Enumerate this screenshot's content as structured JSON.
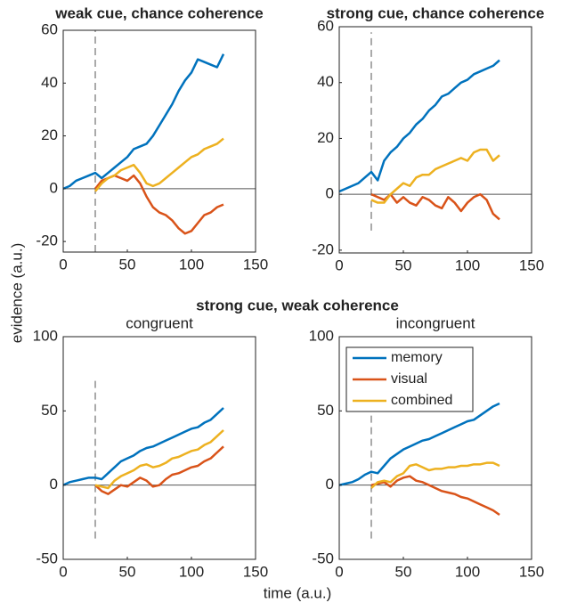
{
  "group_title": "strong cue, weak coherence",
  "ylabel": "evidence (a.u.)",
  "xlabel": "time (a.u.)",
  "chart_data": [
    {
      "type": "line",
      "title": "weak cue, chance coherence",
      "x": [
        0,
        5,
        10,
        15,
        20,
        25,
        30,
        35,
        40,
        45,
        50,
        55,
        60,
        65,
        70,
        75,
        80,
        85,
        90,
        95,
        100,
        105,
        110,
        115,
        120,
        125
      ],
      "series": [
        {
          "name": "memory",
          "color": "#0072bd",
          "values": [
            0,
            1,
            3,
            4,
            5,
            6,
            4,
            6,
            8,
            10,
            12,
            15,
            16,
            17,
            20,
            24,
            28,
            32,
            37,
            41,
            44,
            49,
            48,
            47,
            46,
            51
          ]
        },
        {
          "name": "visual",
          "color": "#d95319",
          "values": [
            null,
            null,
            null,
            null,
            null,
            0,
            3,
            4,
            5,
            4,
            3,
            5,
            2,
            -3,
            -7,
            -9,
            -10,
            -12,
            -15,
            -17,
            -16,
            -13,
            -10,
            -9,
            -7,
            -6
          ]
        },
        {
          "name": "combined",
          "color": "#edb120",
          "values": [
            null,
            null,
            null,
            null,
            null,
            -1,
            2,
            4,
            5,
            7,
            8,
            9,
            6,
            2,
            1,
            2,
            4,
            6,
            8,
            10,
            12,
            13,
            15,
            16,
            17,
            19
          ]
        }
      ],
      "xlim": [
        0,
        150
      ],
      "xticks": [
        0,
        50,
        100,
        150
      ],
      "ylim": [
        -24,
        60
      ],
      "yticks": [
        -20,
        0,
        20,
        40,
        60
      ],
      "hline": 0,
      "vline": {
        "x": 25,
        "y": [
          -24,
          60
        ]
      }
    },
    {
      "type": "line",
      "title": "strong cue, chance coherence",
      "x": [
        0,
        5,
        10,
        15,
        20,
        25,
        30,
        35,
        40,
        45,
        50,
        55,
        60,
        65,
        70,
        75,
        80,
        85,
        90,
        95,
        100,
        105,
        110,
        115,
        120,
        125
      ],
      "series": [
        {
          "name": "memory",
          "color": "#0072bd",
          "values": [
            1,
            2,
            3,
            4,
            6,
            8,
            5,
            12,
            15,
            17,
            20,
            22,
            25,
            27,
            30,
            32,
            35,
            36,
            38,
            40,
            41,
            43,
            44,
            45,
            46,
            48
          ]
        },
        {
          "name": "visual",
          "color": "#d95319",
          "values": [
            null,
            null,
            null,
            null,
            null,
            0,
            -1,
            -2,
            0,
            -3,
            -1,
            -3,
            -4,
            -1,
            -2,
            -4,
            -5,
            -1,
            -3,
            -6,
            -3,
            -1,
            0,
            -2,
            -7,
            -9
          ]
        },
        {
          "name": "combined",
          "color": "#edb120",
          "values": [
            null,
            null,
            null,
            null,
            null,
            -2,
            -3,
            -3,
            0,
            2,
            4,
            3,
            6,
            7,
            7,
            9,
            10,
            11,
            12,
            13,
            12,
            15,
            16,
            16,
            12,
            14
          ]
        }
      ],
      "xlim": [
        0,
        150
      ],
      "xticks": [
        0,
        50,
        100,
        150
      ],
      "ylim": [
        -21,
        60
      ],
      "yticks": [
        -20,
        0,
        20,
        40,
        60
      ],
      "hline": 0,
      "vline": {
        "x": 25,
        "y": [
          -13,
          58
        ]
      }
    },
    {
      "type": "line",
      "title": "congruent",
      "x": [
        0,
        5,
        10,
        15,
        20,
        25,
        30,
        35,
        40,
        45,
        50,
        55,
        60,
        65,
        70,
        75,
        80,
        85,
        90,
        95,
        100,
        105,
        110,
        115,
        120,
        125
      ],
      "series": [
        {
          "name": "memory",
          "color": "#0072bd",
          "values": [
            0,
            2,
            3,
            4,
            5,
            5,
            4,
            8,
            12,
            16,
            18,
            20,
            23,
            25,
            26,
            28,
            30,
            32,
            34,
            36,
            38,
            39,
            42,
            44,
            48,
            52
          ]
        },
        {
          "name": "visual",
          "color": "#d95319",
          "values": [
            null,
            null,
            null,
            null,
            null,
            0,
            -4,
            -6,
            -3,
            0,
            -1,
            2,
            5,
            3,
            -1,
            0,
            4,
            7,
            8,
            10,
            12,
            13,
            16,
            18,
            22,
            26
          ]
        },
        {
          "name": "combined",
          "color": "#edb120",
          "values": [
            null,
            null,
            null,
            null,
            null,
            0,
            -1,
            -2,
            3,
            6,
            8,
            10,
            13,
            14,
            12,
            13,
            15,
            18,
            19,
            21,
            23,
            24,
            27,
            29,
            33,
            37
          ]
        }
      ],
      "xlim": [
        0,
        150
      ],
      "xticks": [
        0,
        50,
        100,
        150
      ],
      "ylim": [
        -50,
        100
      ],
      "yticks": [
        -50,
        0,
        50,
        100
      ],
      "hline": 0,
      "vline": {
        "x": 25,
        "y": [
          -36,
          73
        ]
      }
    },
    {
      "type": "line",
      "title": "incongruent",
      "legend": "top-left",
      "x": [
        0,
        5,
        10,
        15,
        20,
        25,
        30,
        35,
        40,
        45,
        50,
        55,
        60,
        65,
        70,
        75,
        80,
        85,
        90,
        95,
        100,
        105,
        110,
        115,
        120,
        125
      ],
      "series": [
        {
          "name": "memory",
          "color": "#0072bd",
          "values": [
            0,
            1,
            2,
            4,
            7,
            9,
            8,
            13,
            18,
            21,
            24,
            26,
            28,
            30,
            31,
            33,
            35,
            37,
            39,
            41,
            43,
            44,
            47,
            50,
            53,
            55
          ]
        },
        {
          "name": "visual",
          "color": "#d95319",
          "values": [
            null,
            null,
            null,
            null,
            null,
            0,
            1,
            2,
            -1,
            3,
            5,
            6,
            3,
            2,
            0,
            -2,
            -4,
            -5,
            -6,
            -8,
            -9,
            -11,
            -13,
            -15,
            -17,
            -20
          ]
        },
        {
          "name": "combined",
          "color": "#edb120",
          "values": [
            null,
            null,
            null,
            null,
            null,
            -2,
            2,
            3,
            2,
            6,
            8,
            13,
            14,
            12,
            10,
            11,
            11,
            12,
            12,
            13,
            13,
            14,
            14,
            15,
            15,
            13
          ]
        }
      ],
      "xlim": [
        0,
        150
      ],
      "xticks": [
        0,
        50,
        100,
        150
      ],
      "ylim": [
        -50,
        100
      ],
      "yticks": [
        -50,
        0,
        50,
        100
      ],
      "hline": 0,
      "vline": {
        "x": 25,
        "y": [
          -36,
          73
        ]
      }
    }
  ]
}
